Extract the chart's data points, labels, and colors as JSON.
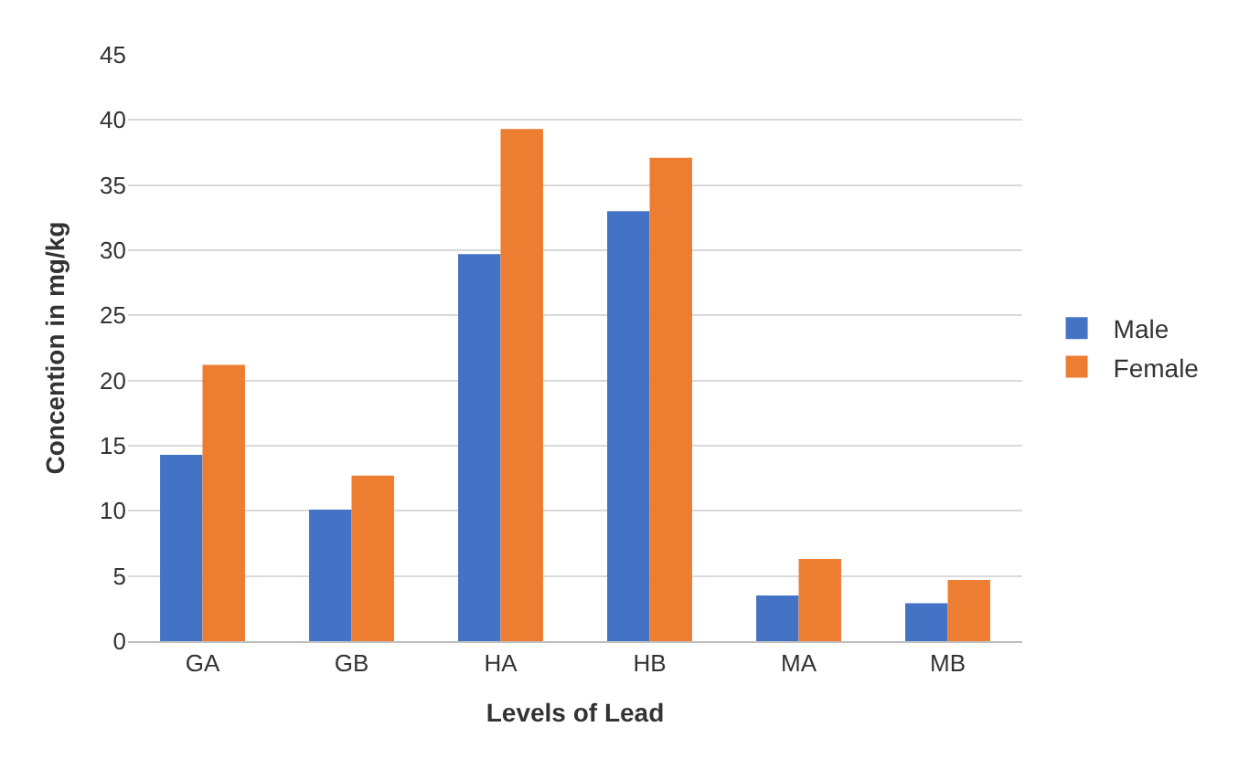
{
  "chart_data": {
    "type": "bar",
    "xlabel": "Levels of Lead",
    "ylabel": "Concention in mg/kg",
    "categories": [
      "GA",
      "GB",
      "HA",
      "HB",
      "MA",
      "MB"
    ],
    "series": [
      {
        "name": "Male",
        "color": "#4472c4",
        "values": [
          14.3,
          10.1,
          29.7,
          33.0,
          3.5,
          2.9
        ]
      },
      {
        "name": "Female",
        "color": "#ed7d31",
        "values": [
          21.2,
          12.7,
          39.3,
          37.1,
          6.3,
          4.7
        ]
      }
    ],
    "ylim": [
      0,
      45
    ],
    "yticks": [
      0,
      5,
      10,
      15,
      20,
      25,
      30,
      35,
      40,
      45
    ],
    "grid": "y",
    "legend": "right"
  }
}
